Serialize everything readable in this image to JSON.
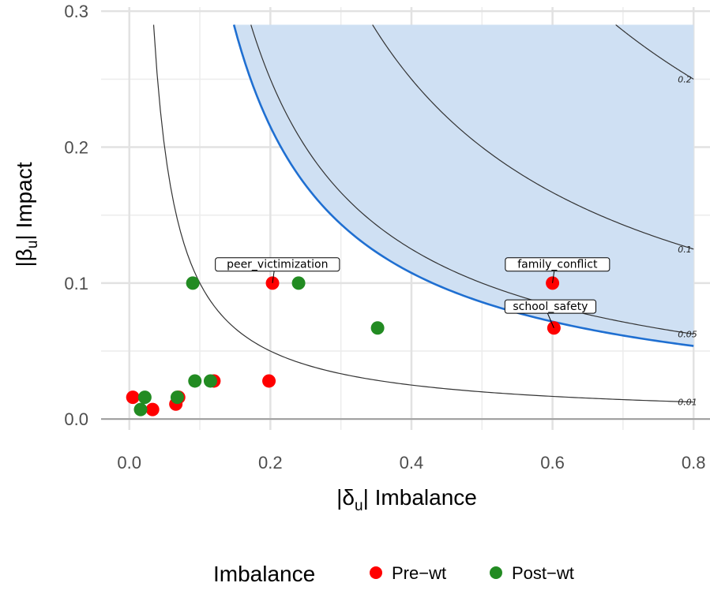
{
  "chart_data": {
    "type": "scatter",
    "title": "",
    "xlabel_main": "|δ",
    "xlabel_sub": "u",
    "xlabel_tail": "| Imbalance",
    "ylabel_main": "|β",
    "ylabel_sub": "u",
    "ylabel_tail": "| Impact",
    "xlim": [
      -0.04,
      0.83
    ],
    "ylim": [
      -0.008,
      0.303
    ],
    "x_ticks": [
      0.0,
      0.2,
      0.4,
      0.6,
      0.8
    ],
    "x_tick_labels": [
      "0.0",
      "0.2",
      "0.4",
      "0.6",
      "0.8"
    ],
    "y_ticks": [
      0.0,
      0.1,
      0.2,
      0.3
    ],
    "y_tick_labels": [
      "0.0",
      "0.1",
      "0.2",
      "0.3"
    ],
    "grid": true,
    "shaded_region": {
      "bias_threshold": 0.043,
      "color": "#cfe0f3",
      "boundary_color": "#1f6fd1",
      "x_max": 0.8,
      "y_max": 0.29
    },
    "contours": [
      {
        "level": 0.01,
        "label": "0.01"
      },
      {
        "level": 0.05,
        "label": "0.05"
      },
      {
        "level": 0.1,
        "label": "0.1"
      },
      {
        "level": 0.2,
        "label": "0.2"
      }
    ],
    "series": [
      {
        "name": "Pre−wt",
        "color": "#ff0000",
        "points": [
          {
            "x": 0.005,
            "y": 0.016
          },
          {
            "x": 0.033,
            "y": 0.007
          },
          {
            "x": 0.066,
            "y": 0.011
          },
          {
            "x": 0.07,
            "y": 0.016
          },
          {
            "x": 0.12,
            "y": 0.028
          },
          {
            "x": 0.198,
            "y": 0.028
          },
          {
            "x": 0.203,
            "y": 0.1
          },
          {
            "x": 0.6,
            "y": 0.1
          },
          {
            "x": 0.602,
            "y": 0.067
          }
        ]
      },
      {
        "name": "Post−wt",
        "color": "#228b22",
        "points": [
          {
            "x": 0.016,
            "y": 0.007
          },
          {
            "x": 0.022,
            "y": 0.016
          },
          {
            "x": 0.068,
            "y": 0.016
          },
          {
            "x": 0.09,
            "y": 0.1
          },
          {
            "x": 0.093,
            "y": 0.028
          },
          {
            "x": 0.115,
            "y": 0.028
          },
          {
            "x": 0.24,
            "y": 0.1
          },
          {
            "x": 0.352,
            "y": 0.067
          }
        ]
      }
    ],
    "annotations": [
      {
        "text": "peer_victimization",
        "point": {
          "x": 0.203,
          "y": 0.1
        },
        "label_at": {
          "x": 0.21,
          "y": 0.114
        }
      },
      {
        "text": "family_conflict",
        "point": {
          "x": 0.6,
          "y": 0.1
        },
        "label_at": {
          "x": 0.607,
          "y": 0.114
        }
      },
      {
        "text": "school_safety",
        "point": {
          "x": 0.602,
          "y": 0.067
        },
        "label_at": {
          "x": 0.597,
          "y": 0.083
        }
      }
    ],
    "legend": {
      "title": "Imbalance",
      "position": "bottom",
      "items": [
        "Pre−wt",
        "Post−wt"
      ]
    }
  }
}
